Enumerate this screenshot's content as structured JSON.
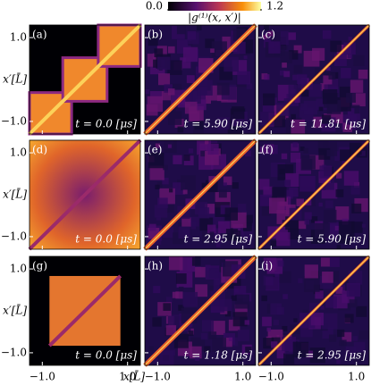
{
  "chart_data": {
    "type": "heatmap",
    "colorbar": {
      "label": "|g⁽¹⁾(x, x′)|",
      "lim": [
        0,
        1.2
      ],
      "ticks": [
        {
          "value": 0,
          "label": "0.0"
        },
        1.2
      ]
    },
    "xlabel": "x[L̄]",
    "ylabel": "x′[L̄]",
    "xlim": [
      -1.3,
      1.3
    ],
    "ylim": [
      -1.3,
      1.3
    ],
    "xticks": [
      {
        "value": -1,
        "label": "−1.0"
      },
      {
        "value": 1,
        "label": "1.0"
      }
    ],
    "yticks": [
      {
        "value": -1,
        "label": "−1.0"
      },
      {
        "value": 1,
        "label": "1.0"
      }
    ],
    "panels": [
      {
        "label": "(a)",
        "annotation": "t = 0.0 [μs]"
      },
      {
        "label": "(b)",
        "annotation": "t = 5.90 [μs]"
      },
      {
        "label": "(c)",
        "annotation": "t = 11.81 [μs]"
      },
      {
        "label": "(d)",
        "annotation": "t = 0.0 [μs]"
      },
      {
        "label": "(e)",
        "annotation": "t = 2.95 [μs]"
      },
      {
        "label": "(f)",
        "annotation": "t = 5.90 [μs]"
      },
      {
        "label": "(g)",
        "annotation": "t = 0.0 [μs]"
      },
      {
        "label": "(h)",
        "annotation": "t = 1.18 [μs]"
      },
      {
        "label": "(i)",
        "annotation": "t = 2.95 [μs]"
      }
    ]
  }
}
